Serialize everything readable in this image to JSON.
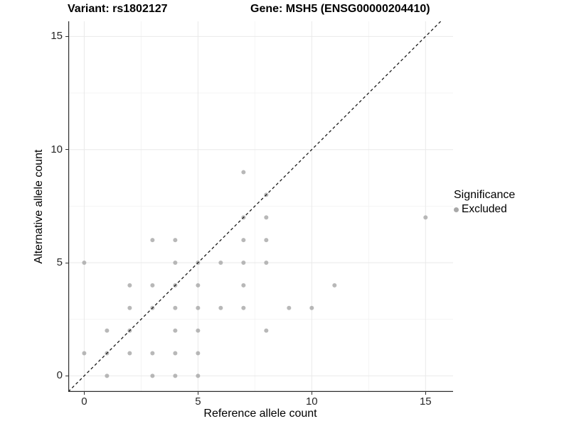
{
  "title": {
    "variant": "Variant: rs1802127",
    "gene": "Gene: MSH5 (ENSG00000204410)"
  },
  "axes": {
    "x": {
      "label": "Reference allele count",
      "ticks": [
        0,
        5,
        10,
        15
      ],
      "minor_ticks": [
        2.5,
        7.5,
        12.5
      ]
    },
    "y": {
      "label": "Alternative allele count",
      "ticks": [
        0,
        5,
        10,
        15
      ],
      "minor_ticks": [
        2.5,
        7.5,
        12.5
      ]
    }
  },
  "legend": {
    "title": "Significance",
    "entries": [
      {
        "label": "Excluded",
        "color": "#a8a8a8"
      }
    ]
  },
  "colors": {
    "point": "#a8a8a8",
    "grid_major": "#e9e9e9",
    "grid_minor": "#f4f4f4",
    "axis_line": "#2f2f2f",
    "reference_line": "#1a1a1a",
    "text": "#000000"
  },
  "chart_data": {
    "type": "scatter",
    "title": "Variant: rs1802127   Gene: MSH5 (ENSG00000204410)",
    "xlabel": "Reference allele count",
    "ylabel": "Alternative allele count",
    "xlim": [
      -0.7,
      16.21
    ],
    "ylim": [
      -0.71,
      15.67
    ],
    "grid": "on",
    "legend_position": "right",
    "reference_line": {
      "type": "identity y=x",
      "style": "dashed",
      "color": "#1a1a1a"
    },
    "series": [
      {
        "name": "Excluded",
        "color": "#a8a8a8",
        "points": [
          [
            0,
            1
          ],
          [
            0,
            5
          ],
          [
            1,
            0
          ],
          [
            1,
            1
          ],
          [
            1,
            2
          ],
          [
            2,
            1
          ],
          [
            2,
            2
          ],
          [
            2,
            3
          ],
          [
            2,
            4
          ],
          [
            3,
            0
          ],
          [
            3,
            1
          ],
          [
            3,
            3
          ],
          [
            3,
            4
          ],
          [
            3,
            6
          ],
          [
            4,
            0
          ],
          [
            4,
            1
          ],
          [
            4,
            2
          ],
          [
            4,
            3
          ],
          [
            4,
            4
          ],
          [
            4,
            5
          ],
          [
            4,
            6
          ],
          [
            5,
            0
          ],
          [
            5,
            1
          ],
          [
            5,
            2
          ],
          [
            5,
            3
          ],
          [
            5,
            4
          ],
          [
            5,
            5
          ],
          [
            6,
            3
          ],
          [
            6,
            5
          ],
          [
            7,
            3
          ],
          [
            7,
            4
          ],
          [
            7,
            5
          ],
          [
            7,
            6
          ],
          [
            7,
            7
          ],
          [
            7,
            9
          ],
          [
            8,
            2
          ],
          [
            8,
            5
          ],
          [
            8,
            6
          ],
          [
            8,
            7
          ],
          [
            8,
            8
          ],
          [
            9,
            3
          ],
          [
            10,
            3
          ],
          [
            11,
            4
          ],
          [
            15,
            7
          ]
        ]
      }
    ]
  }
}
